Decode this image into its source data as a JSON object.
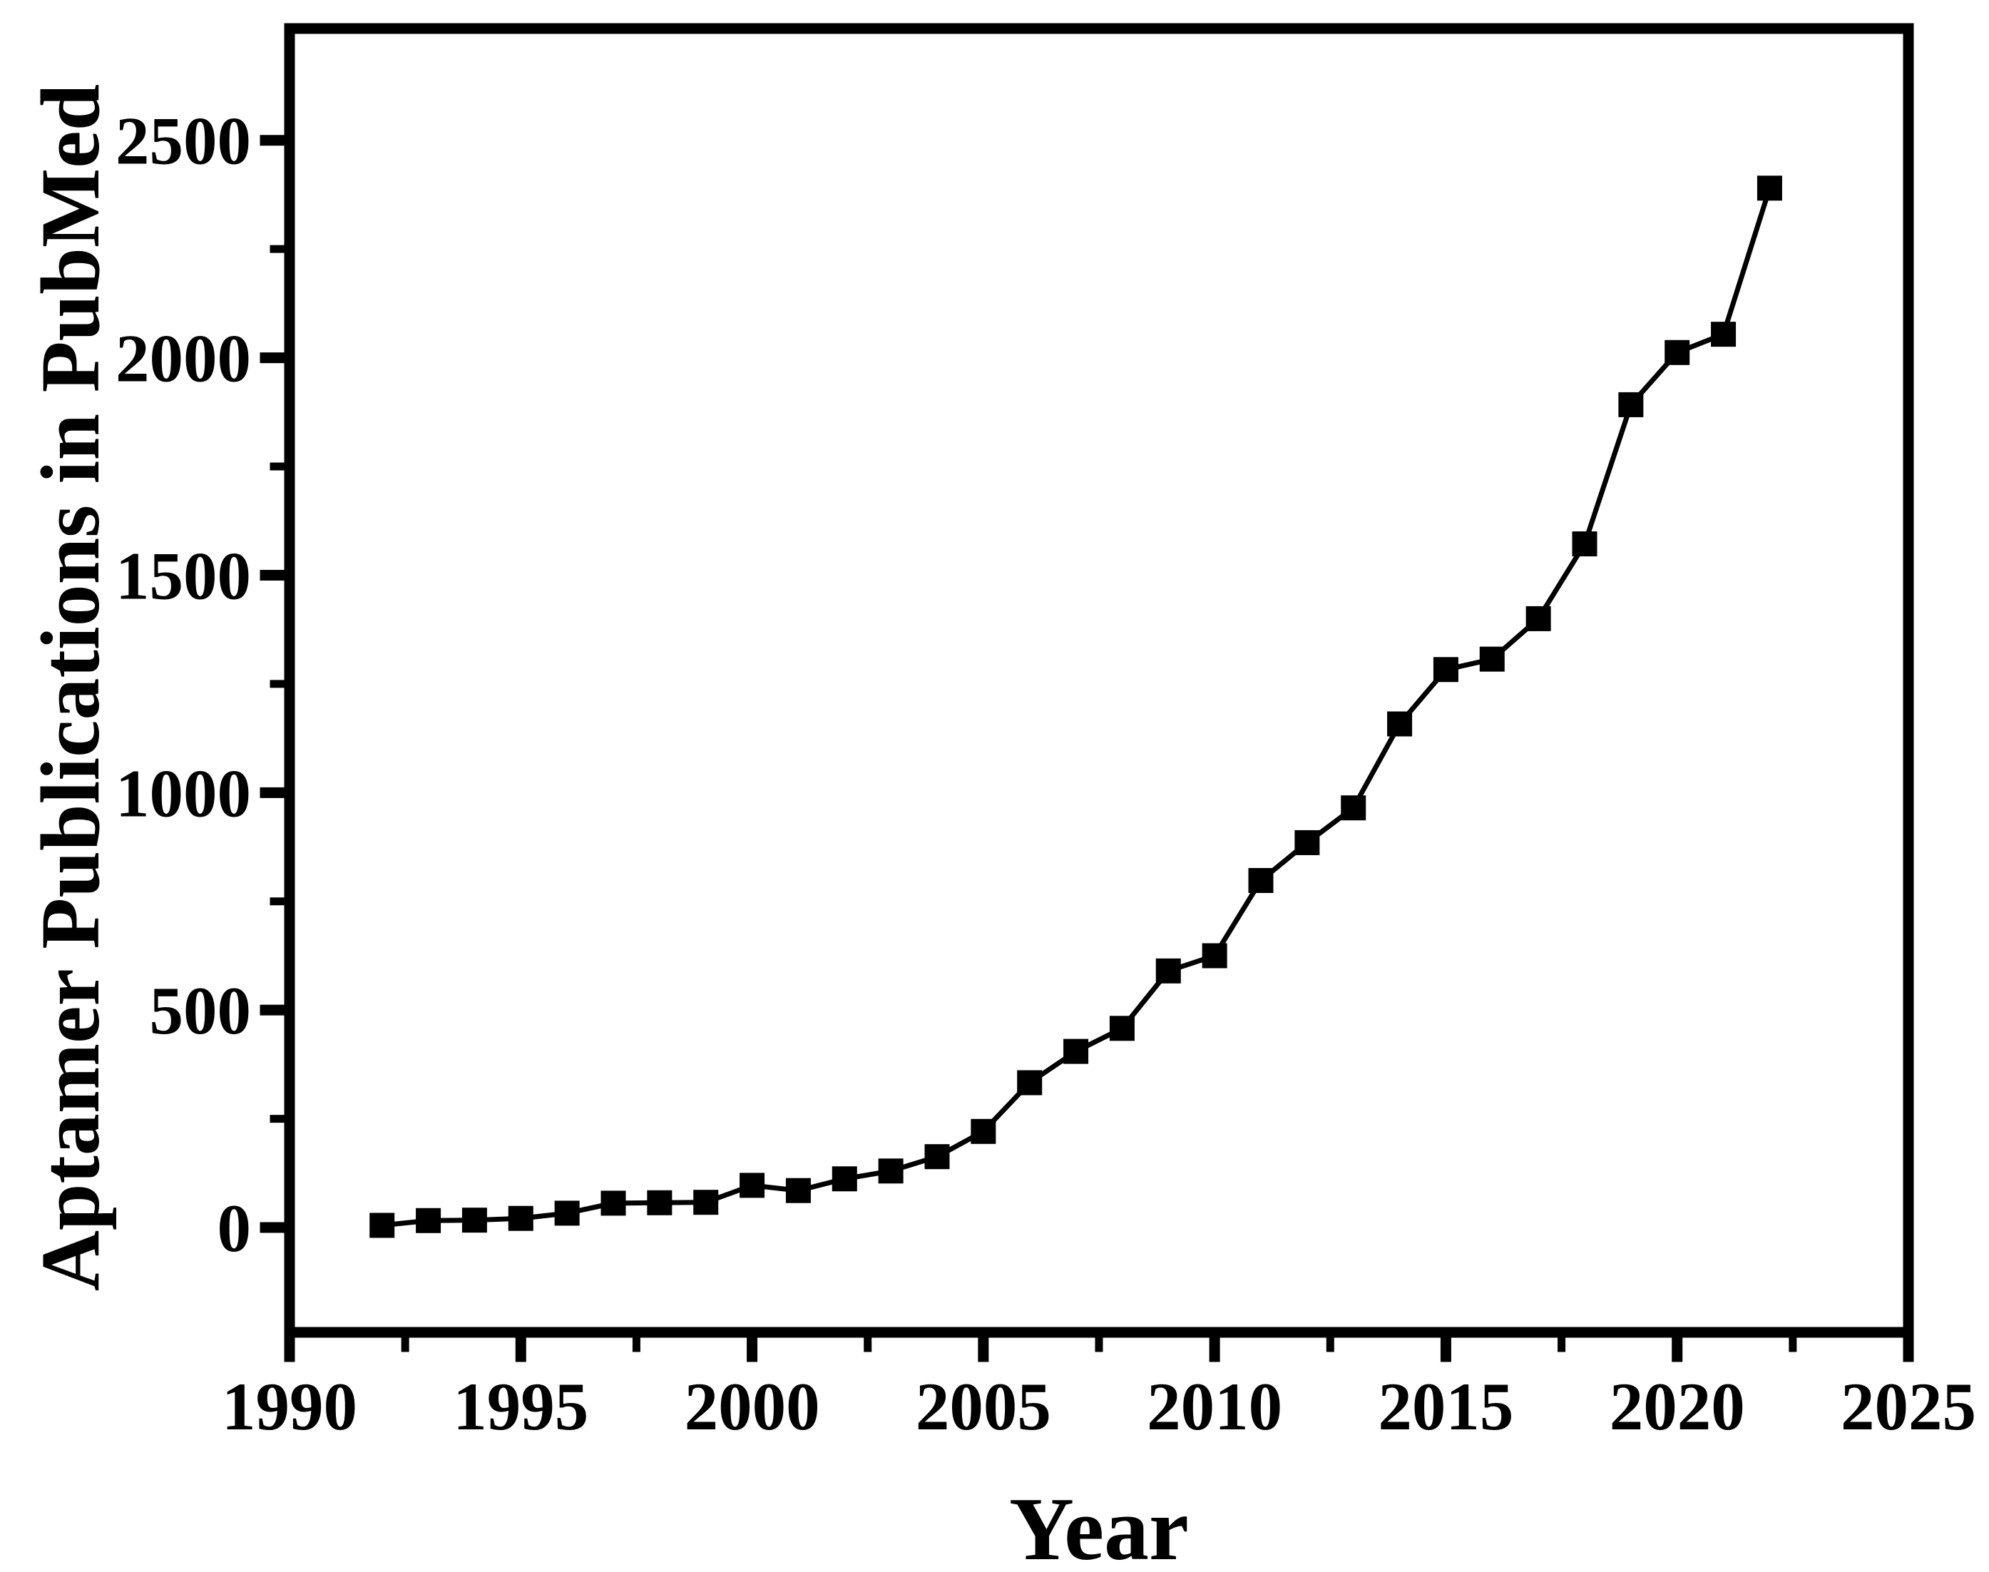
{
  "figure": {
    "background_color": "#ffffff",
    "ink_color": "#000000",
    "title": ""
  },
  "chart_data": {
    "type": "line",
    "marker": "filled-square",
    "marker_color": "#000000",
    "line_color": "#000000",
    "title": "",
    "xlabel": "Year",
    "ylabel": "Aptamer Publications in PubMed",
    "legend": "none",
    "grid": "off",
    "xlim": [
      1990,
      2025
    ],
    "ylim": [
      -241,
      2757
    ],
    "x_major_ticks": [
      1990,
      1995,
      2000,
      2005,
      2010,
      2015,
      2020,
      2025
    ],
    "x_major_tick_labels": [
      "1990",
      "1995",
      "2000",
      "2005",
      "2010",
      "2015",
      "2020",
      "2025"
    ],
    "x_minor_ticks": [
      1992.5,
      1997.5,
      2002.5,
      2007.5,
      2012.5,
      2017.5,
      2022.5
    ],
    "y_major_ticks": [
      0,
      500,
      1000,
      1500,
      2000,
      2500
    ],
    "y_major_tick_labels": [
      "0",
      "500",
      "1000",
      "1500",
      "2000",
      "2500"
    ],
    "y_minor_ticks": [
      250,
      750,
      1250,
      1750,
      2250
    ],
    "x": [
      1992,
      1993,
      1994,
      1995,
      1996,
      1997,
      1998,
      1999,
      2000,
      2001,
      2002,
      2003,
      2004,
      2005,
      2006,
      2007,
      2008,
      2009,
      2010,
      2011,
      2012,
      2013,
      2014,
      2015,
      2016,
      2017,
      2018,
      2019,
      2020,
      2021,
      2022
    ],
    "y": [
      5,
      16,
      17,
      21,
      33,
      56,
      57,
      58,
      97,
      85,
      112,
      130,
      163,
      221,
      333,
      405,
      458,
      590,
      625,
      798,
      885,
      965,
      1158,
      1283,
      1307,
      1400,
      1572,
      1892,
      2012,
      2054,
      2390
    ]
  }
}
